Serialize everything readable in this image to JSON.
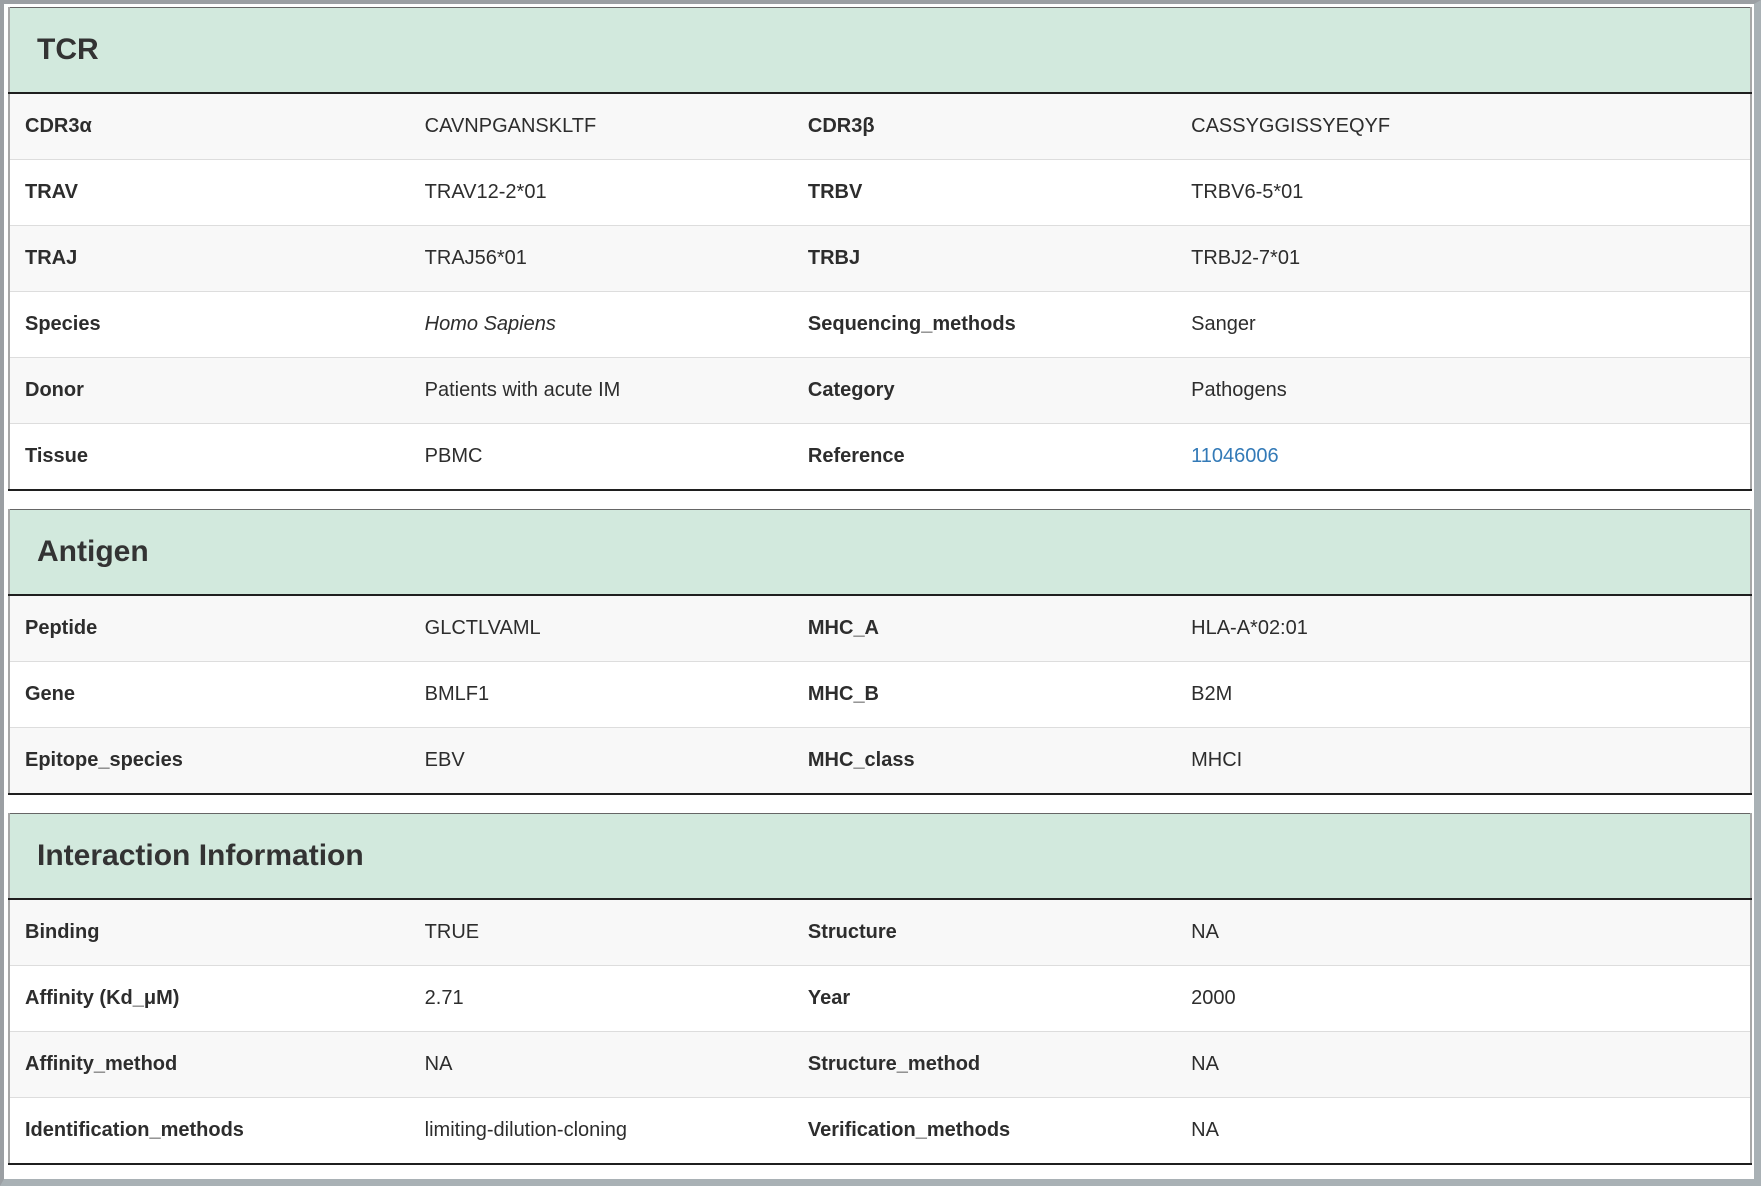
{
  "tcr": {
    "title": "TCR",
    "rows": [
      {
        "label1": "CDR3α",
        "value1": "CAVNPGANSKLTF",
        "label2": "CDR3β",
        "value2": "CASSYGGISSYEQYF"
      },
      {
        "label1": "TRAV",
        "value1": "TRAV12-2*01",
        "label2": "TRBV",
        "value2": "TRBV6-5*01"
      },
      {
        "label1": "TRAJ",
        "value1": "TRAJ56*01",
        "label2": "TRBJ",
        "value2": "TRBJ2-7*01"
      },
      {
        "label1": "Species",
        "value1": "Homo Sapiens",
        "label2": "Sequencing_methods",
        "value2": "Sanger"
      },
      {
        "label1": "Donor",
        "value1": "Patients with acute IM",
        "label2": "Category",
        "value2": "Pathogens"
      },
      {
        "label1": "Tissue",
        "value1": "PBMC",
        "label2": "Reference",
        "value2": "11046006"
      }
    ]
  },
  "antigen": {
    "title": "Antigen",
    "rows": [
      {
        "label1": "Peptide",
        "value1": "GLCTLVAML",
        "label2": "MHC_A",
        "value2": "HLA-A*02:01"
      },
      {
        "label1": "Gene",
        "value1": "BMLF1",
        "label2": "MHC_B",
        "value2": "B2M"
      },
      {
        "label1": "Epitope_species",
        "value1": "EBV",
        "label2": "MHC_class",
        "value2": "MHCI"
      }
    ]
  },
  "interaction": {
    "title": "Interaction Information",
    "rows": [
      {
        "label1": "Binding",
        "value1": "TRUE",
        "label2": "Structure",
        "value2": "NA"
      },
      {
        "label1": "Affinity (Kd_μM)",
        "value1": "2.71",
        "label2": "Year",
        "value2": "2000"
      },
      {
        "label1": "Affinity_method",
        "value1": "NA",
        "label2": "Structure_method",
        "value2": "NA"
      },
      {
        "label1": "Identification_methods",
        "value1": "limiting-dilution-cloning",
        "label2": "Verification_methods",
        "value2": "NA"
      }
    ]
  },
  "colors": {
    "section_header_bg": "#d2e9dd",
    "row_stripe": "#f8f8f8",
    "dark_border": "#1f1f1f",
    "link": "#337ab7",
    "text": "#2d2d2d"
  }
}
